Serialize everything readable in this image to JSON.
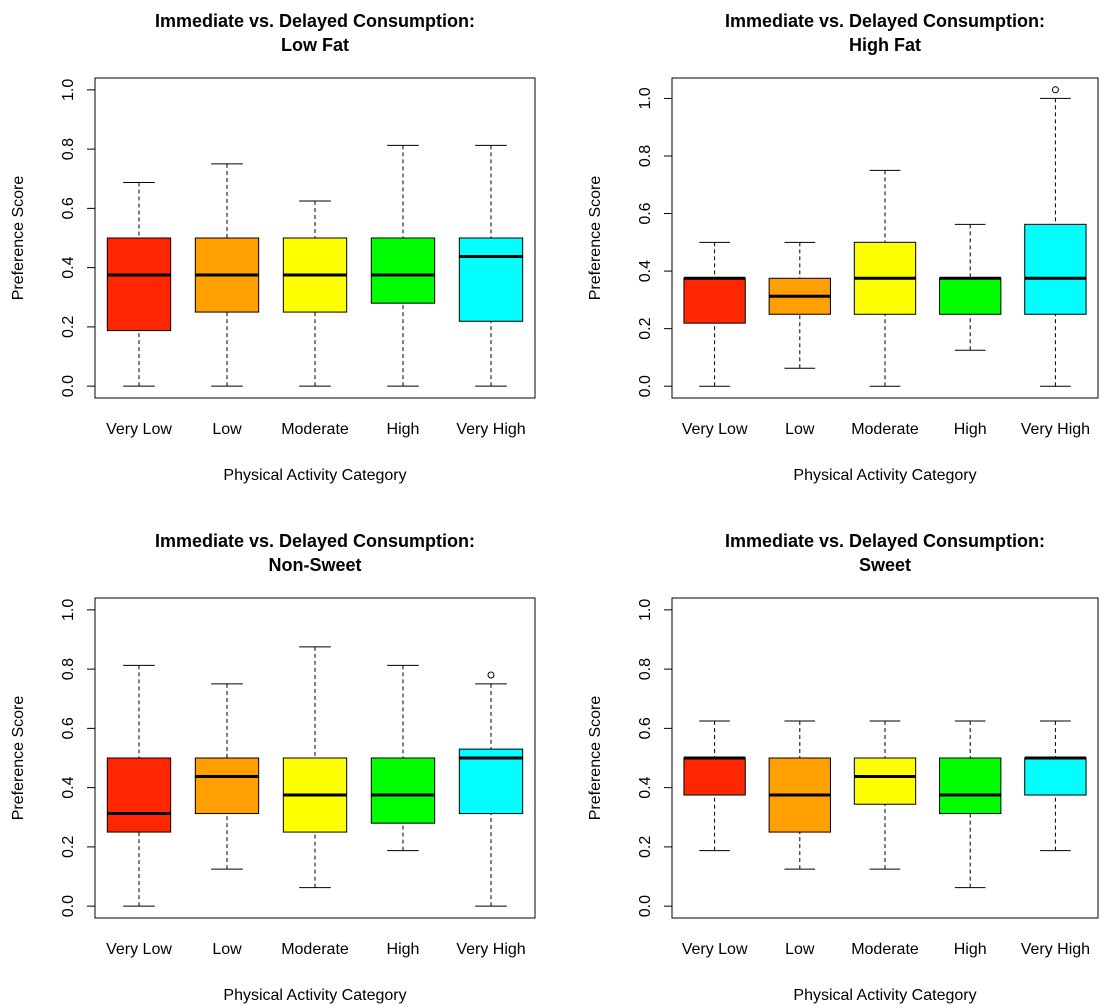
{
  "chart_data": [
    {
      "type": "box",
      "title": [
        "Immediate vs. Delayed Consumption:",
        "Low Fat"
      ],
      "xlabel": "Physical Activity Category",
      "ylabel": "Preference Score",
      "categories": [
        "Very Low",
        "Low",
        "Moderate",
        "High",
        "Very High"
      ],
      "colors": [
        "#ff2600",
        "#ff9f00",
        "#ffff00",
        "#00ff00",
        "#00ffff"
      ],
      "boxes": [
        {
          "min": 0,
          "q1": 0.1875,
          "median": 0.375,
          "q3": 0.5,
          "max": 0.6875
        },
        {
          "min": 0,
          "q1": 0.25,
          "median": 0.375,
          "q3": 0.5,
          "max": 0.75
        },
        {
          "min": 0,
          "q1": 0.25,
          "median": 0.375,
          "q3": 0.5,
          "max": 0.625
        },
        {
          "min": 0,
          "q1": 0.28,
          "median": 0.375,
          "q3": 0.5,
          "max": 0.8125
        },
        {
          "min": 0,
          "q1": 0.219,
          "median": 0.4375,
          "q3": 0.5,
          "max": 0.8125
        }
      ],
      "ylim": [
        -0.04,
        1.04
      ],
      "yticks": [
        {
          "value": 0,
          "label": "0.0"
        },
        0.2,
        0.4,
        0.6,
        0.8,
        {
          "value": 1,
          "label": "1.0"
        }
      ]
    },
    {
      "type": "box",
      "title": [
        "Immediate vs. Delayed Consumption:",
        "High Fat"
      ],
      "xlabel": "Physical Activity Category",
      "ylabel": "Preference Score",
      "categories": [
        "Very Low",
        "Low",
        "Moderate",
        "High",
        "Very High"
      ],
      "colors": [
        "#ff2600",
        "#ff9f00",
        "#ffff00",
        "#00ff00",
        "#00ffff"
      ],
      "boxes": [
        {
          "min": 0,
          "q1": 0.219,
          "median": 0.375,
          "q3": 0.375,
          "max": 0.5
        },
        {
          "min": 0.0625,
          "q1": 0.25,
          "median": 0.3125,
          "q3": 0.375,
          "max": 0.5
        },
        {
          "min": 0,
          "q1": 0.25,
          "median": 0.375,
          "q3": 0.5,
          "max": 0.75
        },
        {
          "min": 0.125,
          "q1": 0.25,
          "median": 0.375,
          "q3": 0.375,
          "max": 0.5625
        },
        {
          "min": 0,
          "q1": 0.25,
          "median": 0.375,
          "q3": 0.5625,
          "max": 1,
          "outliers": [
            1.03
          ]
        }
      ],
      "ylim": [
        -0.041,
        1.071
      ],
      "yticks": [
        {
          "value": 0,
          "label": "0.0"
        },
        0.2,
        0.4,
        0.6,
        0.8,
        {
          "value": 1,
          "label": "1.0"
        }
      ]
    },
    {
      "type": "box",
      "title": [
        "Immediate vs. Delayed Consumption:",
        "Non-Sweet"
      ],
      "xlabel": "Physical Activity Category",
      "ylabel": "Preference Score",
      "categories": [
        "Very Low",
        "Low",
        "Moderate",
        "High",
        "Very High"
      ],
      "colors": [
        "#ff2600",
        "#ff9f00",
        "#ffff00",
        "#00ff00",
        "#00ffff"
      ],
      "boxes": [
        {
          "min": 0,
          "q1": 0.25,
          "median": 0.3125,
          "q3": 0.5,
          "max": 0.8125
        },
        {
          "min": 0.125,
          "q1": 0.3125,
          "median": 0.4375,
          "q3": 0.5,
          "max": 0.75
        },
        {
          "min": 0.0625,
          "q1": 0.25,
          "median": 0.375,
          "q3": 0.5,
          "max": 0.875
        },
        {
          "min": 0.1875,
          "q1": 0.28,
          "median": 0.375,
          "q3": 0.5,
          "max": 0.8125
        },
        {
          "min": 0,
          "q1": 0.3125,
          "median": 0.5,
          "q3": 0.53,
          "max": 0.75,
          "outliers": [
            0.78
          ]
        }
      ],
      "ylim": [
        -0.04,
        1.04
      ],
      "yticks": [
        {
          "value": 0,
          "label": "0.0"
        },
        0.2,
        0.4,
        0.6,
        0.8,
        {
          "value": 1,
          "label": "1.0"
        }
      ]
    },
    {
      "type": "box",
      "title": [
        "Immediate vs. Delayed Consumption:",
        "Sweet"
      ],
      "xlabel": "Physical Activity Category",
      "ylabel": "Preference Score",
      "categories": [
        "Very Low",
        "Low",
        "Moderate",
        "High",
        "Very High"
      ],
      "colors": [
        "#ff2600",
        "#ff9f00",
        "#ffff00",
        "#00ff00",
        "#00ffff"
      ],
      "boxes": [
        {
          "min": 0.1875,
          "q1": 0.375,
          "median": 0.5,
          "q3": 0.5,
          "max": 0.625
        },
        {
          "min": 0.125,
          "q1": 0.25,
          "median": 0.375,
          "q3": 0.5,
          "max": 0.625
        },
        {
          "min": 0.125,
          "q1": 0.344,
          "median": 0.4375,
          "q3": 0.5,
          "max": 0.625
        },
        {
          "min": 0.0625,
          "q1": 0.3125,
          "median": 0.375,
          "q3": 0.5,
          "max": 0.625
        },
        {
          "min": 0.1875,
          "q1": 0.375,
          "median": 0.5,
          "q3": 0.5,
          "max": 0.625
        }
      ],
      "ylim": [
        -0.04,
        1.04
      ],
      "yticks": [
        {
          "value": 0,
          "label": "0.0"
        },
        0.2,
        0.4,
        0.6,
        0.8,
        {
          "value": 1,
          "label": "1.0"
        }
      ]
    }
  ]
}
